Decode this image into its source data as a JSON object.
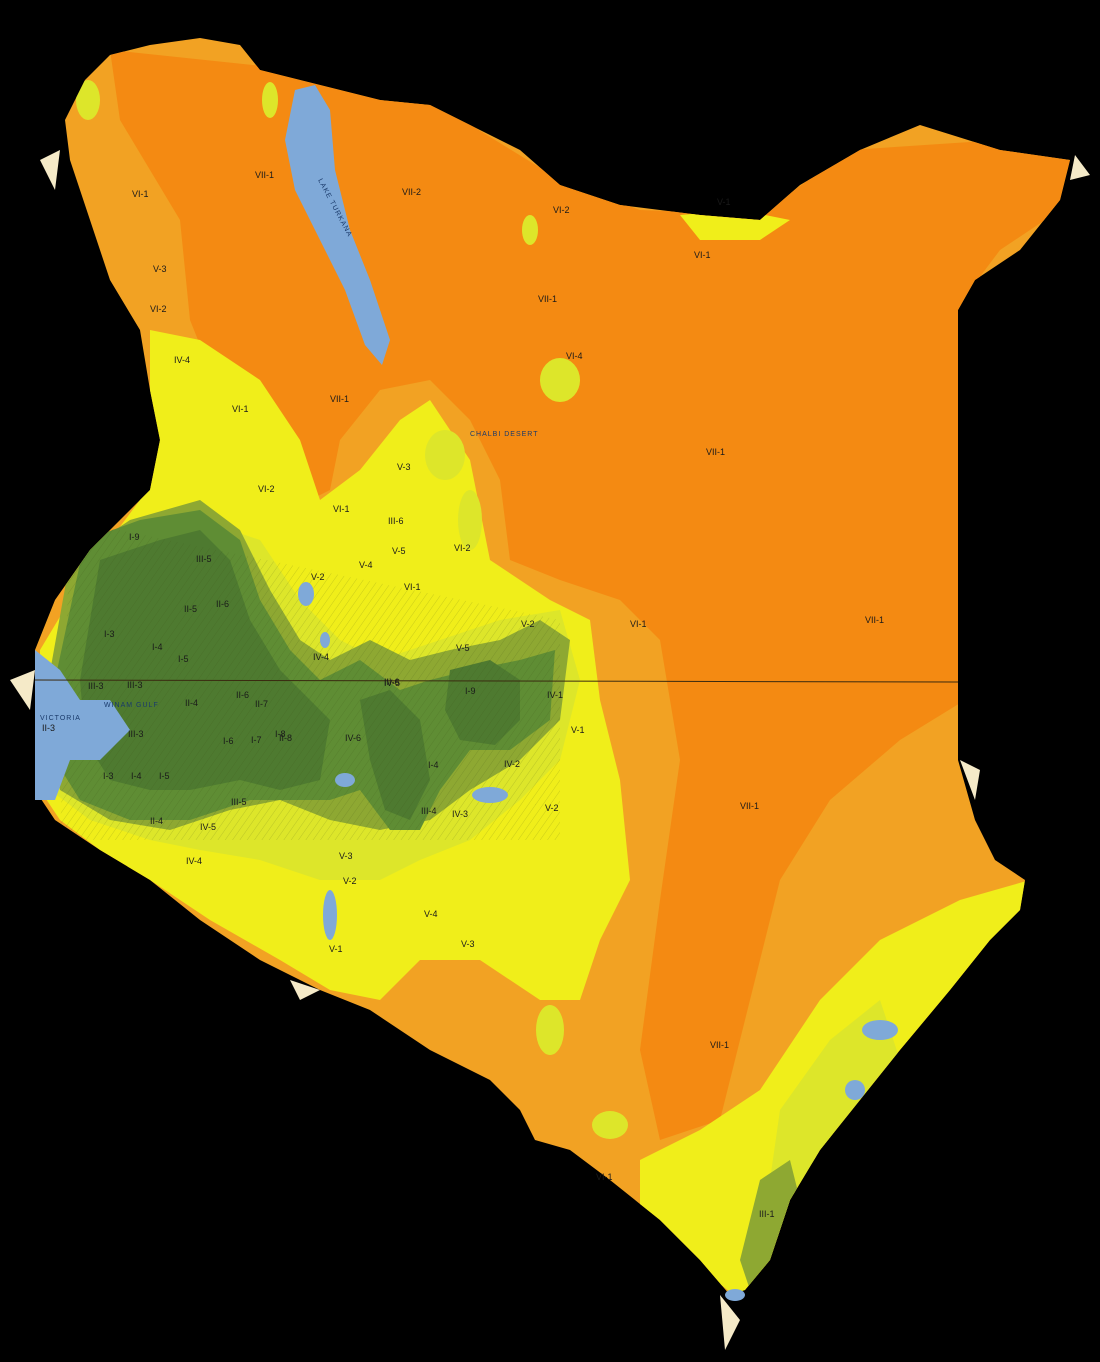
{
  "colors": {
    "background": "#000000",
    "zone_VII": "#f48a12",
    "zone_VI": "#f2a223",
    "zone_V": "#f0ee1a",
    "zone_IV": "#dde62a",
    "zone_III": "#8ea832",
    "zone_II": "#5f8d34",
    "zone_I": "#4e7a30",
    "water": "#7fa9d8",
    "coast_sand": "#f5eac8"
  },
  "water_labels": {
    "lake_turkana": "LAKE TURKANA",
    "lake_victoria": "VICTORIA",
    "winam_gulf": "WINAM GULF",
    "chalbi_desert": "CHALBI DESERT",
    "lake_magadi": "",
    "lake_naivasha": ""
  },
  "zone_labels": [
    "VII-1",
    "VII-2",
    "VII-1",
    "VII-1",
    "VII-1",
    "VII-1",
    "VII-1",
    "VII-1",
    "VI-1",
    "VI-2",
    "VI-1",
    "VI-2",
    "VI-1",
    "VI-2",
    "VI-1",
    "VI-4",
    "VI-2",
    "VI-1",
    "VI-1",
    "VI-1",
    "V-1",
    "V-3",
    "V-2",
    "V-4",
    "V-5",
    "V-2",
    "V-3",
    "V-5",
    "V-1",
    "V-2",
    "V-3",
    "V-4",
    "V-2",
    "V-1",
    "V-3",
    "IV-4",
    "IV-1",
    "IV-2",
    "IV-4",
    "IV-5",
    "IV-3",
    "IV-4",
    "IV-5",
    "IV-6",
    "III-3",
    "III-6",
    "III-5",
    "III-1",
    "III-3",
    "III-5",
    "III-6",
    "III-4",
    "III-3",
    "II-6",
    "II-4",
    "II-5",
    "II-6",
    "II-7",
    "II-8",
    "II-3",
    "II-4",
    "I-3",
    "I-4",
    "I-5",
    "I-6",
    "I-7",
    "I-8",
    "I-9",
    "I-3",
    "I-4",
    "I-5",
    "I-9",
    "I-4"
  ]
}
